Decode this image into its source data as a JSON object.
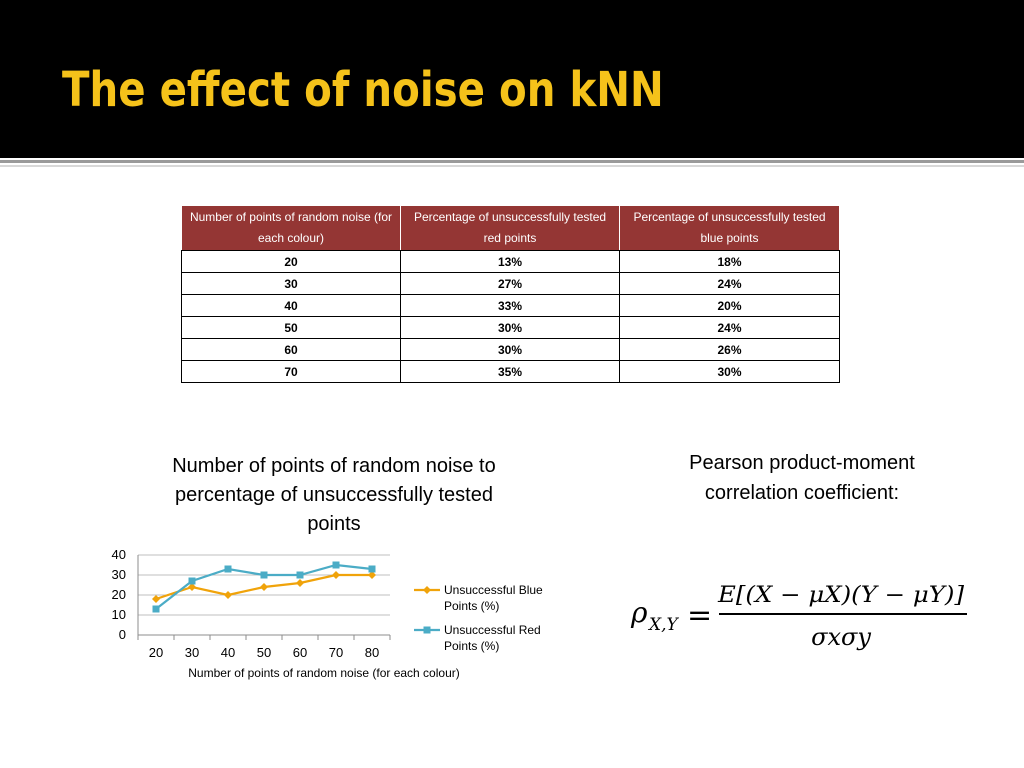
{
  "slide": {
    "title": "The effect of noise on kNN"
  },
  "table": {
    "headers": [
      "Number of points of random noise (for each colour)",
      "Percentage of unsuccessfully tested red points",
      "Percentage of unsuccessfully tested blue points"
    ],
    "rows": [
      [
        "20",
        "13%",
        "18%"
      ],
      [
        "30",
        "27%",
        "24%"
      ],
      [
        "40",
        "33%",
        "20%"
      ],
      [
        "50",
        "30%",
        "24%"
      ],
      [
        "60",
        "30%",
        "26%"
      ],
      [
        "70",
        "35%",
        "30%"
      ]
    ],
    "header_color": "#943634"
  },
  "chart_data": {
    "type": "line",
    "title": "Number of points of random noise to percentage of unsuccessfully tested points",
    "xlabel": "Number of points of random noise (for each colour)",
    "ylabel": "",
    "x": [
      20,
      30,
      40,
      50,
      60,
      70,
      80
    ],
    "ylim": [
      0,
      40
    ],
    "yticks": [
      0,
      10,
      20,
      30,
      40
    ],
    "grid": true,
    "legend_position": "right",
    "series": [
      {
        "name": "Unsuccessful Blue Points (%)",
        "values": [
          18,
          24,
          20,
          24,
          26,
          30,
          30
        ],
        "color": "#f0a30a",
        "marker": "diamond"
      },
      {
        "name": "Unsuccessful Red Points (%)",
        "values": [
          13,
          27,
          33,
          30,
          30,
          35,
          33
        ],
        "color": "#4bacc6",
        "marker": "square"
      }
    ]
  },
  "formula": {
    "label": "Pearson product-moment correlation coefficient:",
    "lhs_symbol": "ρ",
    "lhs_subscript": "X,Y",
    "equals": "=",
    "numerator": "E[(X − μX)(Y − μY)]",
    "denominator": "σxσy"
  }
}
